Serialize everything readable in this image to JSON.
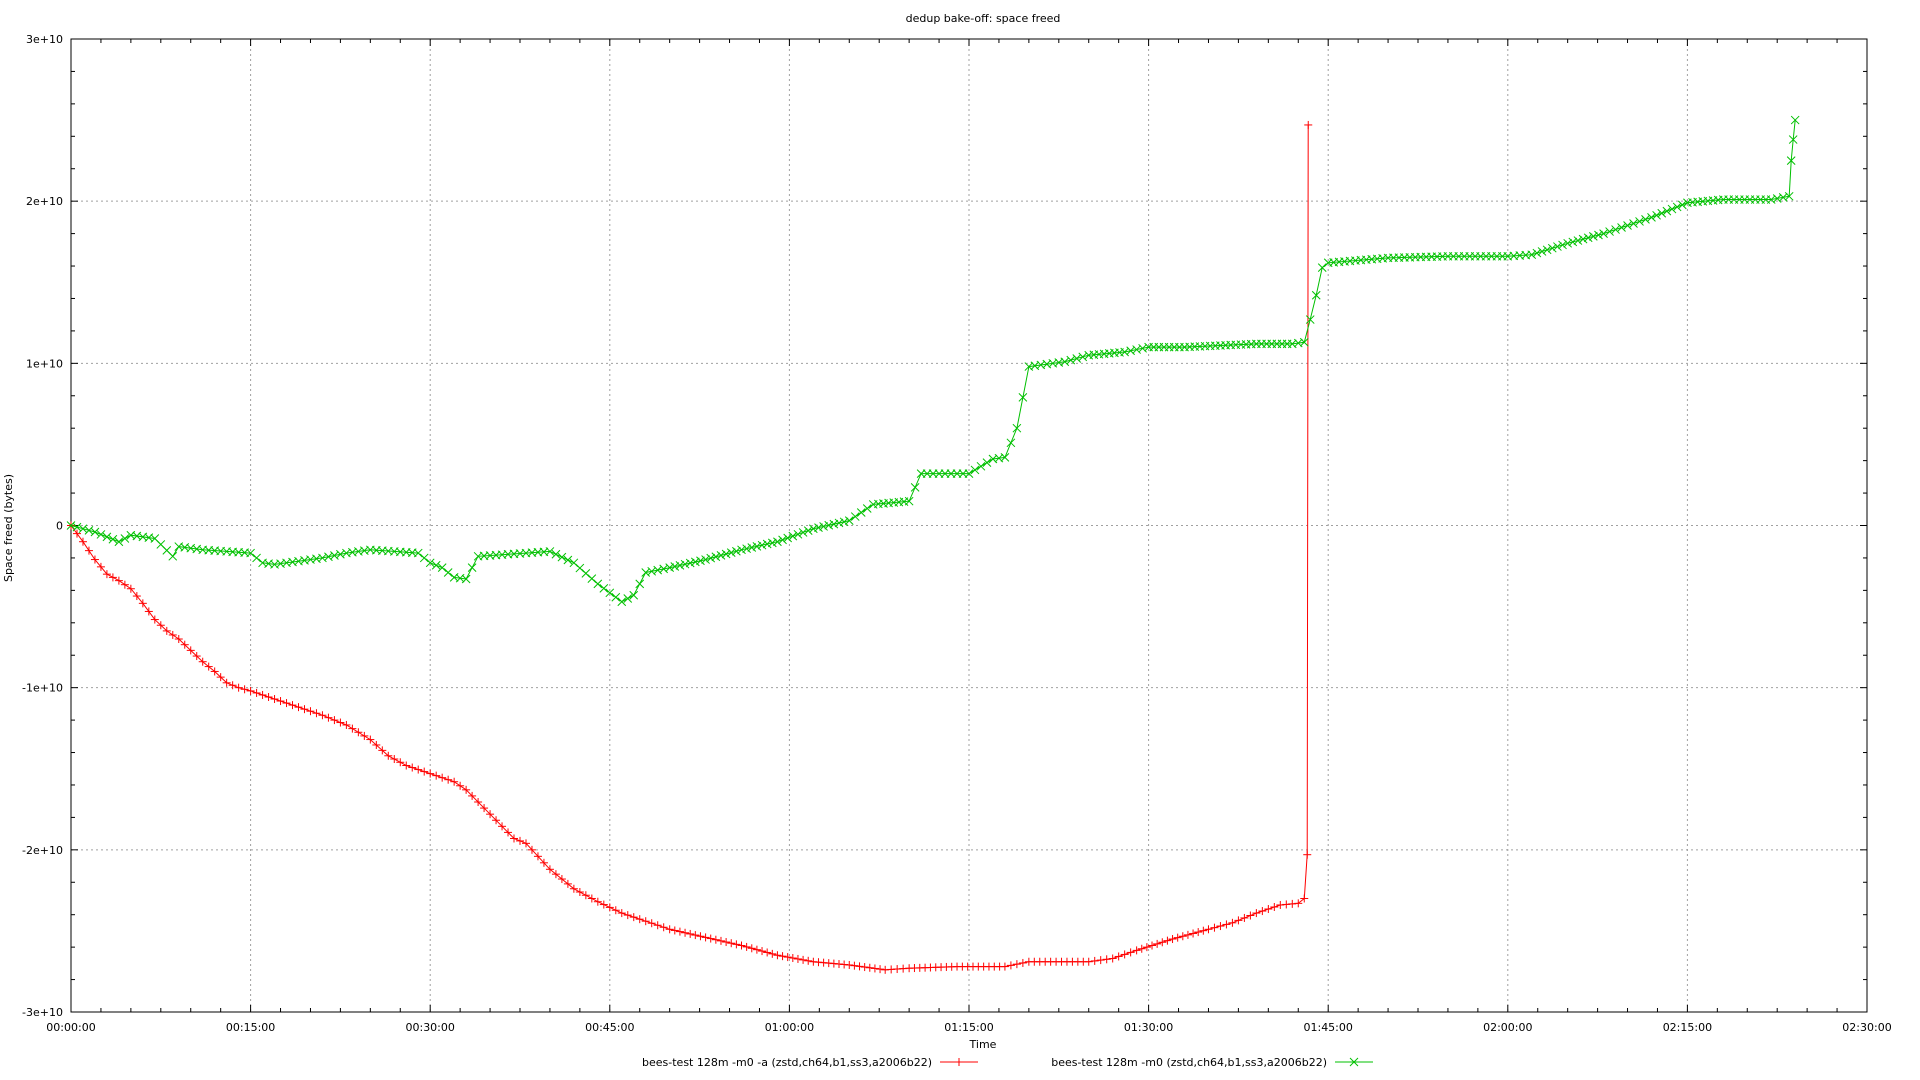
{
  "chart_data": {
    "type": "line",
    "title": "dedup bake-off: space freed",
    "xlabel": "Time",
    "ylabel": "Space freed (bytes)",
    "x_unit": "hh:mm:ss",
    "xlim": [
      "00:00:00",
      "02:30:00"
    ],
    "ylim": [
      -30000000000,
      30000000000
    ],
    "grid": true,
    "legend_position": "bottom",
    "x_tick_labels": [
      "00:00:00",
      "00:15:00",
      "00:30:00",
      "00:45:00",
      "01:00:00",
      "01:15:00",
      "01:30:00",
      "01:45:00",
      "02:00:00",
      "02:15:00",
      "02:30:00"
    ],
    "y_tick_labels": [
      "3e+10",
      "2e+10",
      "1e+10",
      "0",
      "-1e+10",
      "-2e+10",
      "-3e+10"
    ],
    "y_tick_values": [
      30000000000,
      20000000000,
      10000000000,
      0,
      -10000000000,
      -20000000000,
      -30000000000
    ],
    "series": [
      {
        "name": "bees-test 128m -m0 -a (zstd,ch64,b1,ss3,a2006b22)",
        "color": "#ff0000",
        "marker": "plus",
        "x": [
          "00:00:00",
          "00:01:00",
          "00:02:00",
          "00:03:00",
          "00:04:00",
          "00:05:00",
          "00:06:00",
          "00:07:00",
          "00:08:00",
          "00:09:00",
          "00:10:00",
          "00:11:00",
          "00:12:00",
          "00:13:00",
          "00:14:00",
          "00:15:00",
          "00:17:00",
          "00:19:00",
          "00:21:00",
          "00:23:00",
          "00:25:00",
          "00:26:30",
          "00:28:00",
          "00:30:00",
          "00:32:00",
          "00:33:00",
          "00:35:00",
          "00:37:00",
          "00:38:00",
          "00:40:00",
          "00:42:00",
          "00:44:00",
          "00:46:00",
          "00:48:00",
          "00:50:00",
          "00:53:00",
          "00:56:00",
          "00:59:00",
          "01:02:00",
          "01:05:00",
          "01:08:00",
          "01:10:00",
          "01:14:00",
          "01:18:00",
          "01:20:00",
          "01:25:00",
          "01:27:00",
          "01:29:00",
          "01:32:00",
          "01:35:00",
          "01:37:00",
          "01:39:00",
          "01:41:00",
          "01:42:30",
          "01:43:00",
          "01:43:15",
          "01:43:20"
        ],
        "values": [
          0,
          -1000000000,
          -2100000000,
          -3000000000,
          -3400000000,
          -3900000000,
          -4800000000,
          -5800000000,
          -6500000000,
          -7000000000,
          -7700000000,
          -8400000000,
          -9000000000,
          -9700000000,
          -10000000000,
          -10200000000,
          -10700000000,
          -11200000000,
          -11700000000,
          -12300000000,
          -13200000000,
          -14200000000,
          -14800000000,
          -15300000000,
          -15800000000,
          -16300000000,
          -17800000000,
          -19300000000,
          -19600000000,
          -21200000000,
          -22400000000,
          -23200000000,
          -23900000000,
          -24400000000,
          -24900000000,
          -25400000000,
          -25900000000,
          -26500000000,
          -26900000000,
          -27100000000,
          -27400000000,
          -27300000000,
          -27200000000,
          -27200000000,
          -26900000000,
          -26900000000,
          -26700000000,
          -26200000000,
          -25500000000,
          -24900000000,
          -24500000000,
          -23900000000,
          -23400000000,
          -23300000000,
          -23000000000,
          -20300000000,
          24700000000
        ]
      },
      {
        "name": "bees-test 128m -m0  (zstd,ch64,b1,ss3,a2006b22)",
        "color": "#00c000",
        "marker": "x",
        "x": [
          "00:00:00",
          "00:01:00",
          "00:02:00",
          "00:03:00",
          "00:04:00",
          "00:05:00",
          "00:07:00",
          "00:08:30",
          "00:09:00",
          "00:11:00",
          "00:13:00",
          "00:15:00",
          "00:16:00",
          "00:17:00",
          "00:19:00",
          "00:21:00",
          "00:23:00",
          "00:25:00",
          "00:27:00",
          "00:29:00",
          "00:30:00",
          "00:31:00",
          "00:32:00",
          "00:33:00",
          "00:34:00",
          "00:36:00",
          "00:38:00",
          "00:40:00",
          "00:42:00",
          "00:44:00",
          "00:46:00",
          "00:47:00",
          "00:48:00",
          "00:50:00",
          "00:53:00",
          "00:56:00",
          "00:59:00",
          "01:02:00",
          "01:05:00",
          "01:07:00",
          "01:10:00",
          "01:11:00",
          "01:13:00",
          "01:15:00",
          "01:17:00",
          "01:18:00",
          "01:19:00",
          "01:20:00",
          "01:21:00",
          "01:23:00",
          "01:25:00",
          "01:28:00",
          "01:30:00",
          "01:33:00",
          "01:36:00",
          "01:39:00",
          "01:42:00",
          "01:43:00",
          "01:43:30",
          "01:44:00",
          "01:44:30",
          "01:45:00",
          "01:50:00",
          "01:55:00",
          "02:00:00",
          "02:02:00",
          "02:05:00",
          "02:08:00",
          "02:10:00",
          "02:12:00",
          "02:15:00",
          "02:18:00",
          "02:22:00",
          "02:23:30",
          "02:23:40",
          "02:23:50",
          "02:24:00"
        ],
        "values": [
          0,
          -200000000,
          -400000000,
          -700000000,
          -1000000000,
          -600000000,
          -800000000,
          -1900000000,
          -1300000000,
          -1500000000,
          -1600000000,
          -1700000000,
          -2300000000,
          -2400000000,
          -2200000000,
          -2000000000,
          -1700000000,
          -1500000000,
          -1600000000,
          -1700000000,
          -2300000000,
          -2600000000,
          -3200000000,
          -3300000000,
          -1900000000,
          -1800000000,
          -1700000000,
          -1600000000,
          -2300000000,
          -3600000000,
          -4700000000,
          -4300000000,
          -2900000000,
          -2600000000,
          -2100000000,
          -1500000000,
          -1000000000,
          -200000000,
          300000000,
          1300000000,
          1500000000,
          3200000000,
          3200000000,
          3200000000,
          4100000000,
          4200000000,
          6000000000,
          9800000000,
          9900000000,
          10100000000,
          10500000000,
          10700000000,
          11000000000,
          11000000000,
          11100000000,
          11200000000,
          11200000000,
          11300000000,
          12700000000,
          14200000000,
          15900000000,
          16200000000,
          16500000000,
          16600000000,
          16600000000,
          16700000000,
          17400000000,
          18000000000,
          18500000000,
          19000000000,
          19900000000,
          20100000000,
          20100000000,
          20300000000,
          22500000000,
          23800000000,
          25000000000
        ]
      }
    ]
  }
}
